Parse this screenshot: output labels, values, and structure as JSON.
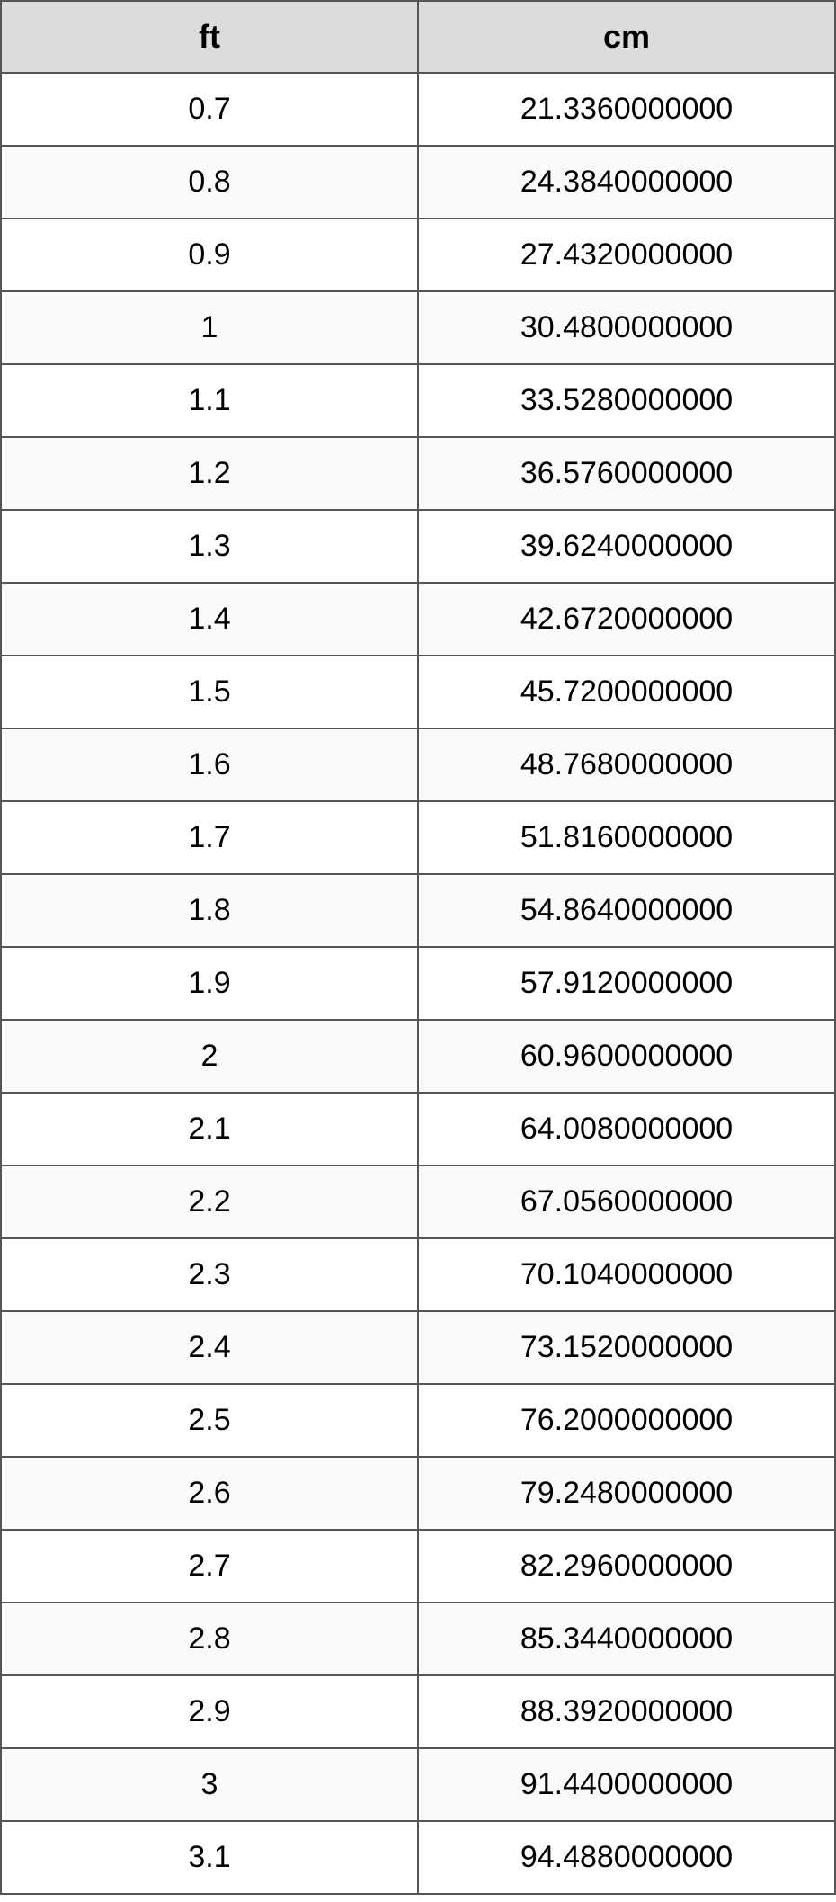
{
  "table": {
    "type": "table",
    "columns": [
      "ft",
      "cm"
    ],
    "column_widths": [
      "50%",
      "50%"
    ],
    "column_alignment": [
      "center",
      "center"
    ],
    "header_bg_color": "#dcdcdc",
    "header_font_weight": "bold",
    "header_fontsize": 36,
    "cell_fontsize": 34,
    "text_color": "#000000",
    "border_color": "#555555",
    "border_width": 2,
    "row_bg_odd": "#ffffff",
    "row_bg_even": "#fafafa",
    "rows": [
      [
        "0.7",
        "21.3360000000"
      ],
      [
        "0.8",
        "24.3840000000"
      ],
      [
        "0.9",
        "27.4320000000"
      ],
      [
        "1",
        "30.4800000000"
      ],
      [
        "1.1",
        "33.5280000000"
      ],
      [
        "1.2",
        "36.5760000000"
      ],
      [
        "1.3",
        "39.6240000000"
      ],
      [
        "1.4",
        "42.6720000000"
      ],
      [
        "1.5",
        "45.7200000000"
      ],
      [
        "1.6",
        "48.7680000000"
      ],
      [
        "1.7",
        "51.8160000000"
      ],
      [
        "1.8",
        "54.8640000000"
      ],
      [
        "1.9",
        "57.9120000000"
      ],
      [
        "2",
        "60.9600000000"
      ],
      [
        "2.1",
        "64.0080000000"
      ],
      [
        "2.2",
        "67.0560000000"
      ],
      [
        "2.3",
        "70.1040000000"
      ],
      [
        "2.4",
        "73.1520000000"
      ],
      [
        "2.5",
        "76.2000000000"
      ],
      [
        "2.6",
        "79.2480000000"
      ],
      [
        "2.7",
        "82.2960000000"
      ],
      [
        "2.8",
        "85.3440000000"
      ],
      [
        "2.9",
        "88.3920000000"
      ],
      [
        "3",
        "91.4400000000"
      ],
      [
        "3.1",
        "94.4880000000"
      ]
    ]
  }
}
